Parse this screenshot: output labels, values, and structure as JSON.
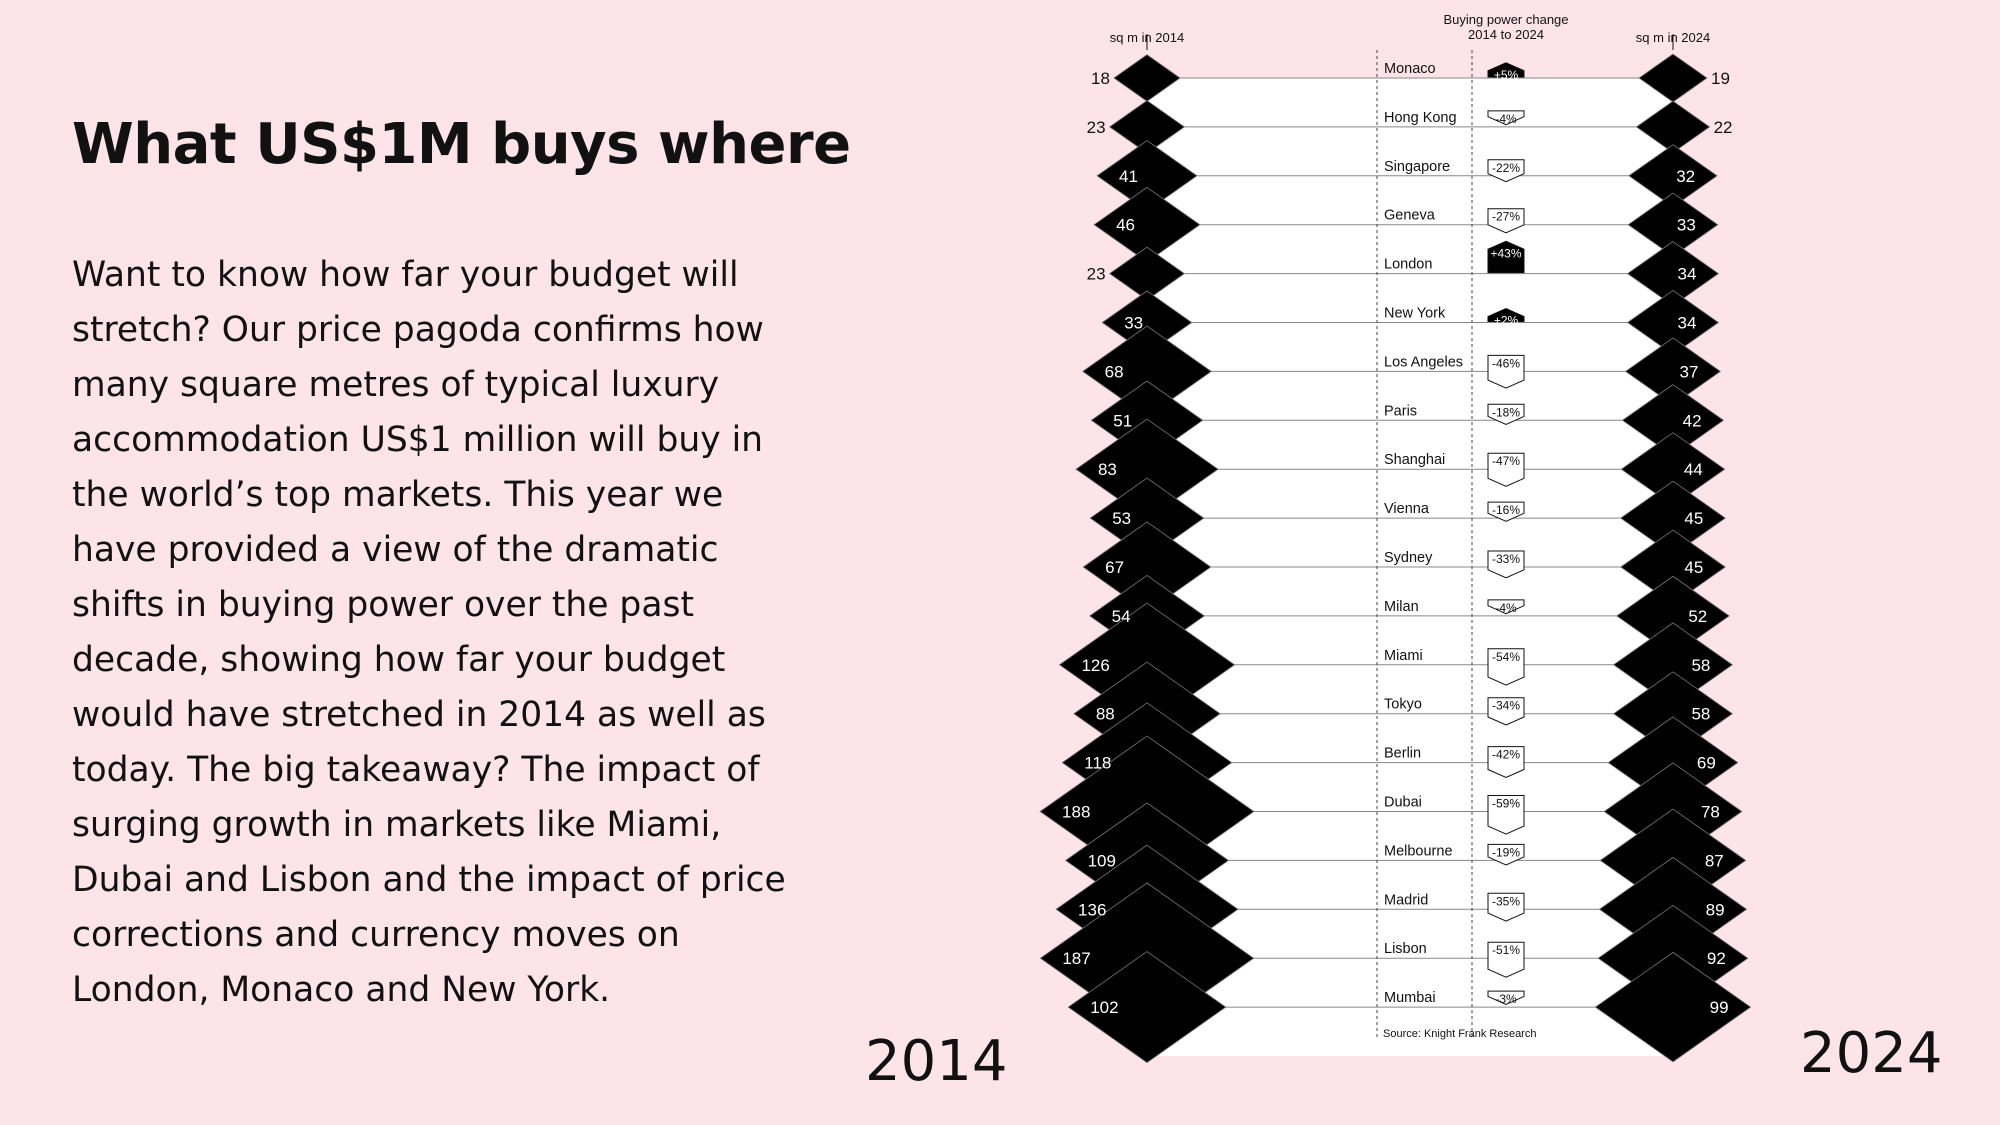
{
  "headline": "What US$1M buys where",
  "intro": "Want to know how far your budget will stretch? Our price pagoda confirms how many square metres of typical luxury accommodation US$1 million will buy in the world’s top markets. This year we have provided a view of the dramatic shifts in buying power over the past decade, showing how far your budget would have stretched in 2014 as well as today. The big takeaway? The impact of surging growth in markets like Miami, Dubai and Lisbon and the impact of price corrections and currency moves on London, Monaco and New York.",
  "chart_data": {
    "type": "pagoda",
    "header_left": "sq m in 2014",
    "header_mid_line1": "Buying power change",
    "header_mid_line2": "2014 to 2024",
    "header_right": "sq m in 2024",
    "year_left": "2014",
    "year_right": "2024",
    "source": "Source: Knight Frank Research",
    "rows": [
      {
        "city": "Monaco",
        "sqm_2014": 18,
        "sqm_2024": 19,
        "change_label": "+5%",
        "change": 5
      },
      {
        "city": "Hong Kong",
        "sqm_2014": 23,
        "sqm_2024": 22,
        "change_label": "-4%",
        "change": -4
      },
      {
        "city": "Singapore",
        "sqm_2014": 41,
        "sqm_2024": 32,
        "change_label": "-22%",
        "change": -22
      },
      {
        "city": "Geneva",
        "sqm_2014": 46,
        "sqm_2024": 33,
        "change_label": "-27%",
        "change": -27
      },
      {
        "city": "London",
        "sqm_2014": 23,
        "sqm_2024": 34,
        "change_label": "+43%",
        "change": 43
      },
      {
        "city": "New York",
        "sqm_2014": 33,
        "sqm_2024": 34,
        "change_label": "+2%",
        "change": 2
      },
      {
        "city": "Los Angeles",
        "sqm_2014": 68,
        "sqm_2024": 37,
        "change_label": "-46%",
        "change": -46
      },
      {
        "city": "Paris",
        "sqm_2014": 51,
        "sqm_2024": 42,
        "change_label": "-18%",
        "change": -18
      },
      {
        "city": "Shanghai",
        "sqm_2014": 83,
        "sqm_2024": 44,
        "change_label": "-47%",
        "change": -47
      },
      {
        "city": "Vienna",
        "sqm_2014": 53,
        "sqm_2024": 45,
        "change_label": "-16%",
        "change": -16
      },
      {
        "city": "Sydney",
        "sqm_2014": 67,
        "sqm_2024": 45,
        "change_label": "-33%",
        "change": -33
      },
      {
        "city": "Milan",
        "sqm_2014": 54,
        "sqm_2024": 52,
        "change_label": "-4%",
        "change": -4
      },
      {
        "city": "Miami",
        "sqm_2014": 126,
        "sqm_2024": 58,
        "change_label": "-54%",
        "change": -54
      },
      {
        "city": "Tokyo",
        "sqm_2014": 88,
        "sqm_2024": 58,
        "change_label": "-34%",
        "change": -34
      },
      {
        "city": "Berlin",
        "sqm_2014": 118,
        "sqm_2024": 69,
        "change_label": "-42%",
        "change": -42
      },
      {
        "city": "Dubai",
        "sqm_2014": 188,
        "sqm_2024": 78,
        "change_label": "-59%",
        "change": -59
      },
      {
        "city": "Melbourne",
        "sqm_2014": 109,
        "sqm_2024": 87,
        "change_label": "-19%",
        "change": -19
      },
      {
        "city": "Madrid",
        "sqm_2014": 136,
        "sqm_2024": 89,
        "change_label": "-35%",
        "change": -35
      },
      {
        "city": "Lisbon",
        "sqm_2014": 187,
        "sqm_2024": 92,
        "change_label": "-51%",
        "change": -51
      },
      {
        "city": "Mumbai",
        "sqm_2014": 102,
        "sqm_2024": 99,
        "change_label": "-3%",
        "change": -3
      }
    ],
    "colors": {
      "background": "#fce4e8",
      "band": "#ffffff",
      "diamond": "#000000"
    }
  }
}
